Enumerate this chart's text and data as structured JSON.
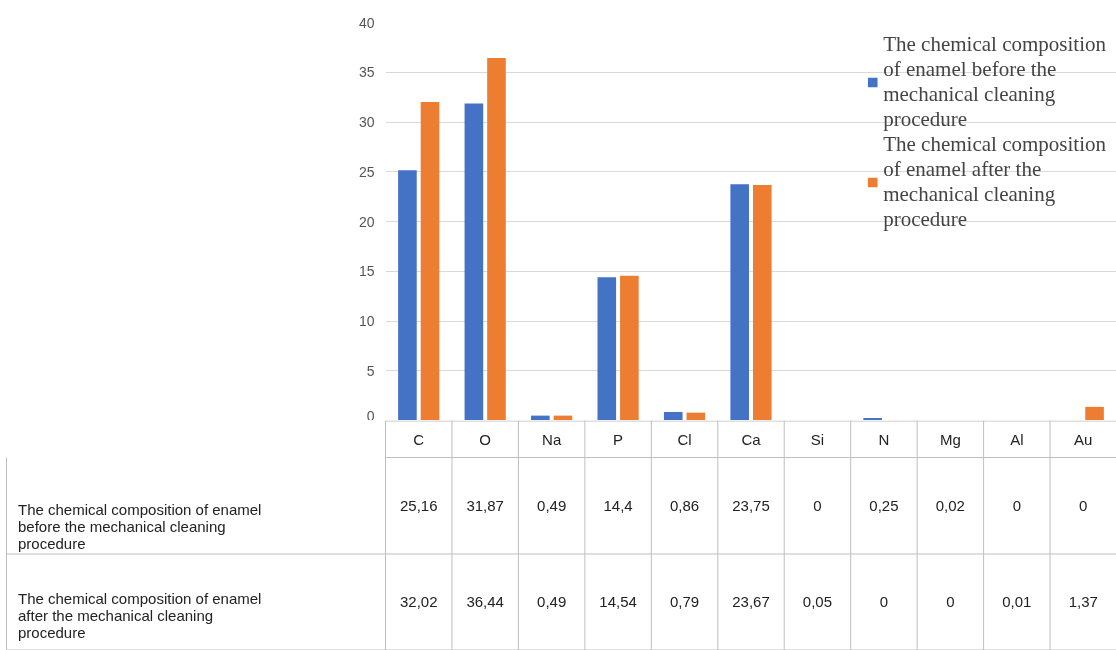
{
  "chart_data": {
    "type": "bar",
    "categories": [
      "C",
      "O",
      "Na",
      "P",
      "Cl",
      "Ca",
      "Si",
      "N",
      "Mg",
      "Al",
      "Au"
    ],
    "series": [
      {
        "name": "The chemical composition of enamel before the mechanical cleaning procedure",
        "color": "#4472c4",
        "values": [
          25.16,
          31.87,
          0.49,
          14.4,
          0.86,
          23.75,
          0,
          0.25,
          0.02,
          0,
          0
        ],
        "value_labels": [
          "25,16",
          "31,87",
          "0,49",
          "14,4",
          "0,86",
          "23,75",
          "0",
          "0,25",
          "0,02",
          "0",
          "0"
        ]
      },
      {
        "name": "The chemical composition of enamel after the mechanical cleaning procedure",
        "color": "#ed7d31",
        "values": [
          32.02,
          36.44,
          0.49,
          14.54,
          0.79,
          23.67,
          0.05,
          0,
          0,
          0.01,
          1.37
        ],
        "value_labels": [
          "32,02",
          "36,44",
          "0,49",
          "14,54",
          "0,79",
          "23,67",
          "0,05",
          "0",
          "0",
          "0,01",
          "1,37"
        ]
      }
    ],
    "ylim": [
      0,
      40
    ],
    "yticks": [
      0,
      5,
      10,
      15,
      20,
      25,
      30,
      35,
      40
    ],
    "grid": "y",
    "legend": "top right"
  }
}
